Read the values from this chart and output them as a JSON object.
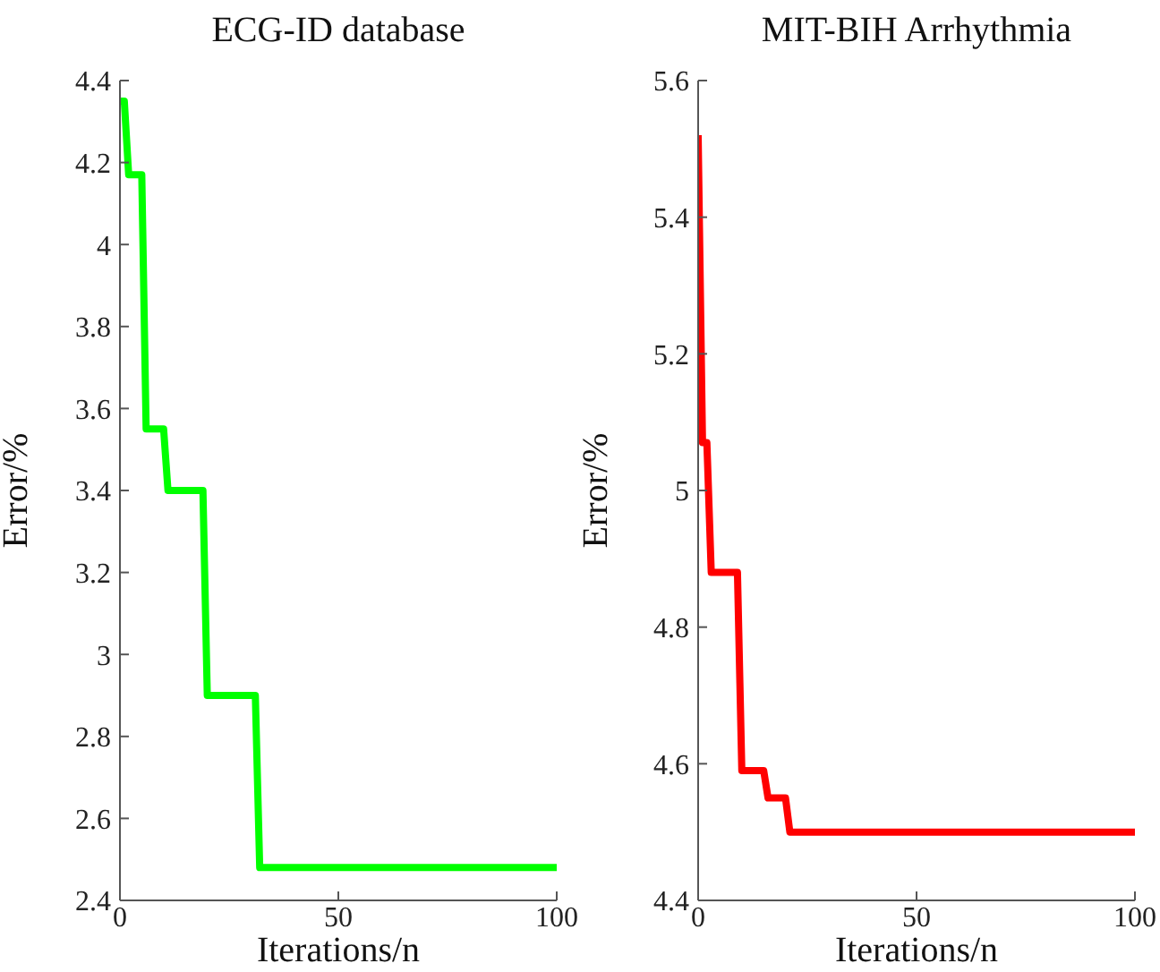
{
  "chart_data": [
    {
      "type": "line",
      "title": "ECG-ID database",
      "xlabel": "Iterations/n",
      "ylabel": "Error/%",
      "color": "#00ff00",
      "x": [
        0,
        1,
        2,
        5,
        6,
        10,
        11,
        19,
        20,
        31,
        32,
        100
      ],
      "values": [
        4.35,
        4.35,
        4.17,
        4.17,
        3.55,
        3.55,
        3.4,
        3.4,
        2.9,
        2.9,
        2.48,
        2.48
      ],
      "xlim": [
        0,
        100
      ],
      "xticks": [
        0,
        50,
        100
      ],
      "ylim": [
        2.4,
        4.4
      ],
      "yticks": [
        2.4,
        2.6,
        2.8,
        3,
        3.2,
        3.4,
        3.6,
        3.8,
        4,
        4.2,
        4.4
      ]
    },
    {
      "type": "line",
      "title": "MIT-BIH Arrhythmia",
      "xlabel": "Iterations/n",
      "ylabel": "Error/%",
      "color": "#ff0000",
      "x": [
        0,
        1,
        2,
        3,
        9,
        10,
        15,
        16,
        20,
        21,
        100
      ],
      "values": [
        5.52,
        5.07,
        5.07,
        4.88,
        4.88,
        4.59,
        4.59,
        4.55,
        4.55,
        4.5,
        4.5
      ],
      "xlim": [
        0,
        100
      ],
      "xticks": [
        0,
        50,
        100
      ],
      "ylim": [
        4.4,
        5.6
      ],
      "yticks": [
        4.4,
        4.6,
        4.8,
        5,
        5.2,
        5.4,
        5.6
      ]
    }
  ]
}
